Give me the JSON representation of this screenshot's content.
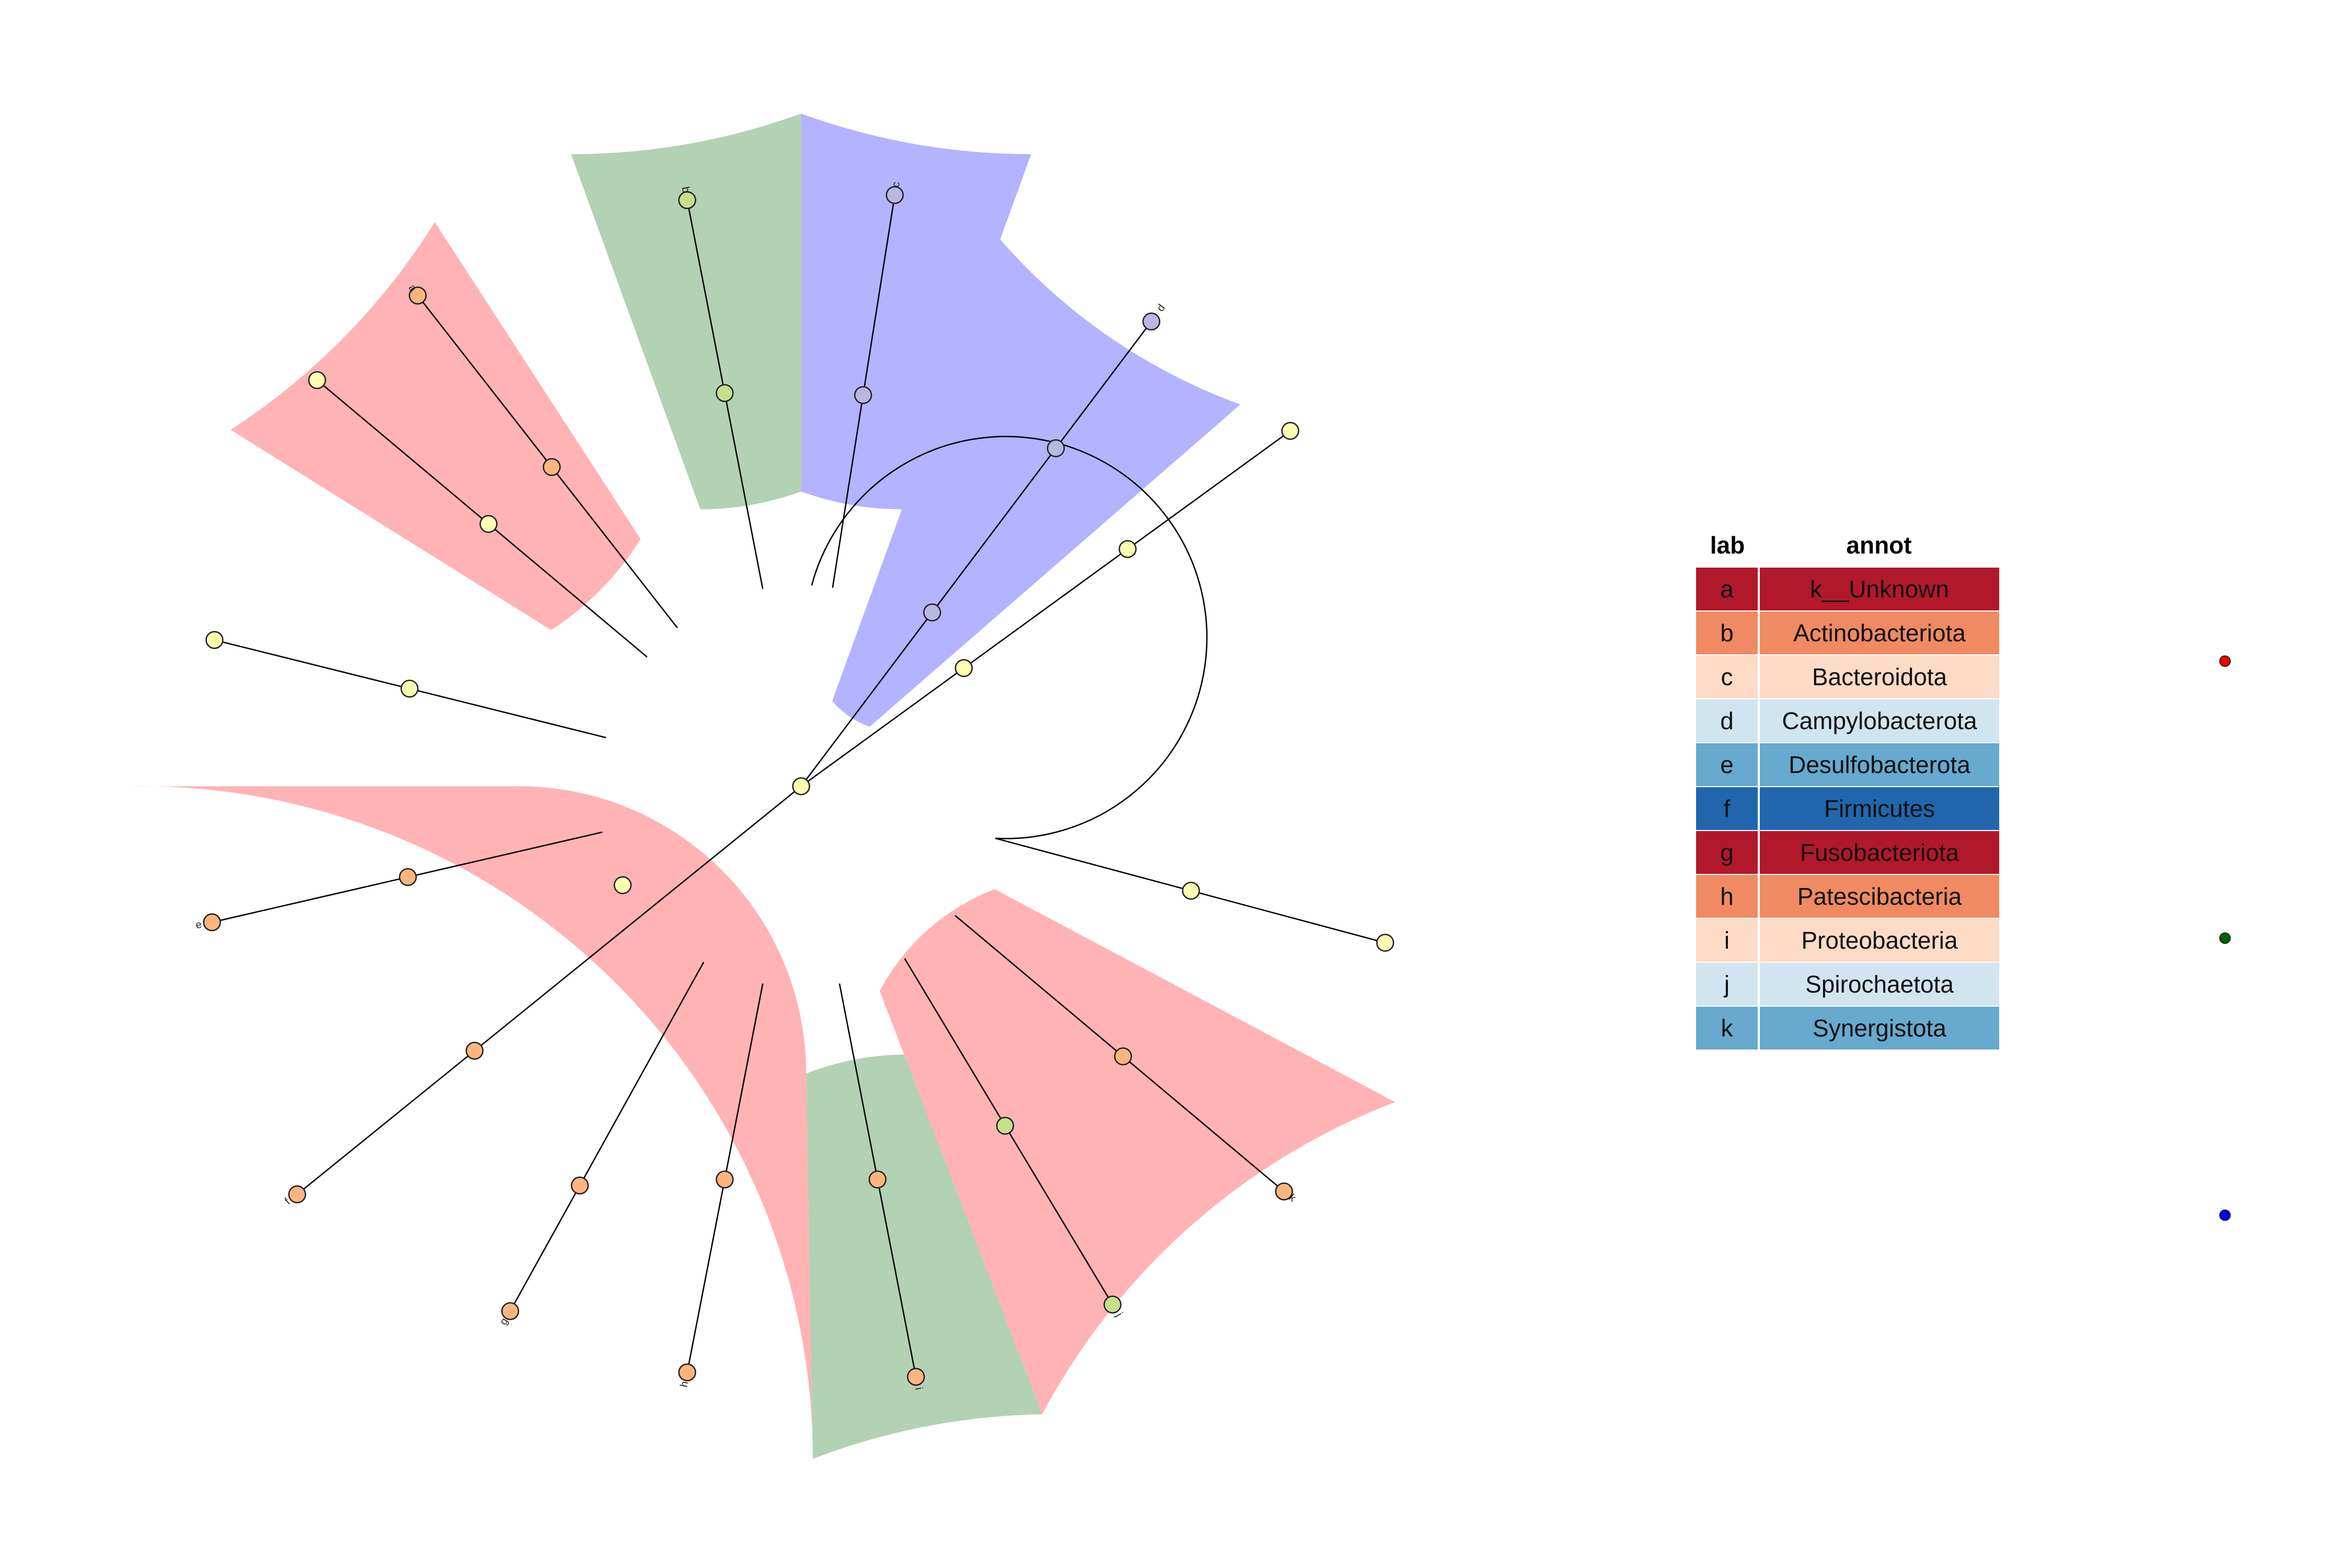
{
  "legend": {
    "headers": {
      "lab": "lab",
      "annot": "annot"
    },
    "rows": [
      {
        "lab": "a",
        "annot": "k__Unknown",
        "color": "#b2182b"
      },
      {
        "lab": "b",
        "annot": "Actinobacteriota",
        "color": "#ef8a62"
      },
      {
        "lab": "c",
        "annot": "Bacteroidota",
        "color": "#fddbc7"
      },
      {
        "lab": "d",
        "annot": "Campylobacterota",
        "color": "#d1e5f0"
      },
      {
        "lab": "e",
        "annot": "Desulfobacterota",
        "color": "#67a9cf"
      },
      {
        "lab": "f",
        "annot": "Firmicutes",
        "color": "#2166ac"
      },
      {
        "lab": "g",
        "annot": "Fusobacteriota",
        "color": "#b2182b"
      },
      {
        "lab": "h",
        "annot": "Patescibacteria",
        "color": "#ef8a62"
      },
      {
        "lab": "i",
        "annot": "Proteobacteria",
        "color": "#fddbc7"
      },
      {
        "lab": "j",
        "annot": "Spirochaetota",
        "color": "#d1e5f0"
      },
      {
        "lab": "k",
        "annot": "Synergistota",
        "color": "#67a9cf"
      }
    ]
  },
  "group_colors": {
    "red_group": "#ff0000",
    "green_group": "#006400",
    "blue_group": "#0000ff"
  },
  "highlight_colors": {
    "red": "#ffb3b5",
    "green": "#b3d1b3",
    "blue": "#b3b3ff"
  },
  "node_colors": {
    "yellow": "#ffffb3",
    "orange": "#fdb57f",
    "green": "#c5e08a",
    "blue": "#b8b8e0"
  },
  "tip_labels": [
    "a",
    "b",
    "c",
    "d",
    "e",
    "f",
    "g",
    "h",
    "i",
    "j",
    "k"
  ]
}
